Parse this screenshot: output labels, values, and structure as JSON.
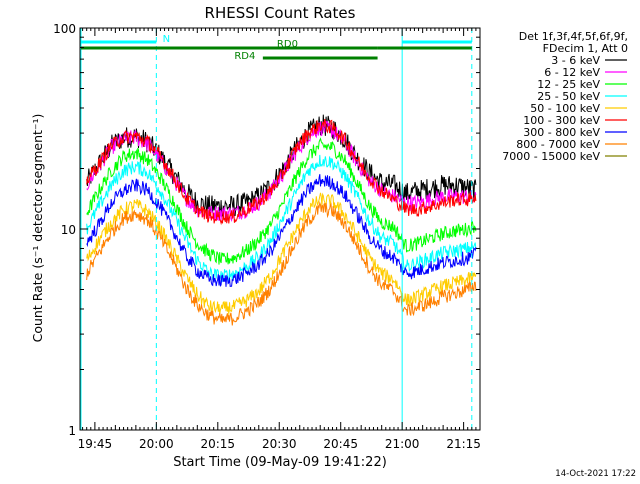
{
  "chart_data": {
    "type": "line",
    "title": "RHESSI Count Rates",
    "xlabel": "Start Time (09-May-09 19:41:22)",
    "ylabel": "Count Rate (s⁻¹ detector segment⁻¹)",
    "ylog": true,
    "ylim": [
      1,
      100
    ],
    "xlim": [
      "19:41:22",
      "21:19:00"
    ],
    "x_ticks": [
      "19:45",
      "20:00",
      "20:15",
      "20:30",
      "20:45",
      "21:00",
      "21:15"
    ],
    "y_ticks": [
      "1",
      "10",
      "100"
    ],
    "footer_date": "14-Oct-2021 17:22",
    "legend": {
      "header_line1": "Det 1f,3f,4f,5f,6f,9f,",
      "header_line2": "FDecim 1, Att 0",
      "placement": "top-right outside"
    },
    "time_axis": [
      "19:43",
      "19:46",
      "19:49",
      "19:52",
      "19:55",
      "19:58",
      "20:01",
      "20:04",
      "20:07",
      "20:10",
      "20:13",
      "20:16",
      "20:19",
      "20:22",
      "20:25",
      "20:28",
      "20:31",
      "20:34",
      "20:37",
      "20:40",
      "20:43",
      "20:46",
      "20:49",
      "20:52",
      "20:55",
      "20:58",
      "21:01",
      "21:04",
      "21:07",
      "21:10",
      "21:13",
      "21:16",
      "21:18"
    ],
    "series": [
      {
        "name": "3 - 6 keV",
        "color": "#000000",
        "values": [
          17,
          21,
          26,
          28.5,
          29,
          27,
          23,
          19,
          15.5,
          13.5,
          13,
          13,
          13,
          13.5,
          14.5,
          16.5,
          20,
          25,
          30,
          33,
          32,
          28,
          22.5,
          19,
          17,
          16.5,
          15,
          15.5,
          16,
          16.5,
          16.5,
          16,
          15.5
        ]
      },
      {
        "name": "6 - 12 keV",
        "color": "#ff00ff",
        "values": [
          16.5,
          20.5,
          25.5,
          28,
          28.5,
          26.5,
          22,
          18,
          14.5,
          12.5,
          12,
          12,
          12,
          12.5,
          13.5,
          15.5,
          19,
          24,
          29,
          32,
          31,
          27,
          21.5,
          17.5,
          15.5,
          14.5,
          13.5,
          13.5,
          14,
          14.5,
          14.5,
          14.5,
          14
        ]
      },
      {
        "name": "12 - 25 keV",
        "color": "#00ff00",
        "values": [
          12,
          15.5,
          19.5,
          23,
          24,
          22,
          18,
          14,
          10.5,
          8.5,
          7.5,
          7,
          7.2,
          7.8,
          8.8,
          10.5,
          13.5,
          18,
          23,
          26,
          25.5,
          22,
          17,
          13,
          10.8,
          10.2,
          8.2,
          8.5,
          9,
          9.5,
          9.8,
          10,
          10.5
        ]
      },
      {
        "name": "25 - 50 keV",
        "color": "#00ffff",
        "values": [
          10,
          13,
          16.5,
          19.5,
          20.5,
          19,
          15.5,
          12,
          9,
          7,
          6,
          5.8,
          6,
          6.5,
          7.3,
          8.8,
          11.5,
          15,
          19.5,
          22,
          21.5,
          18.5,
          14.5,
          11,
          9,
          8.5,
          6.5,
          6.8,
          7.2,
          7.6,
          7.8,
          8,
          8.2
        ]
      },
      {
        "name": "50 - 100 keV",
        "color": "#ffcc00",
        "values": [
          7,
          8.8,
          10.8,
          12.5,
          13.2,
          12.2,
          10,
          7.8,
          5.9,
          4.7,
          4.1,
          4,
          4.1,
          4.4,
          4.9,
          5.9,
          7.6,
          9.8,
          12.5,
          14,
          13.7,
          11.8,
          9.3,
          7.2,
          6,
          5.6,
          4.4,
          4.6,
          4.9,
          5.2,
          5.4,
          5.6,
          5.8
        ]
      },
      {
        "name": "100 - 300 keV",
        "color": "#ff0000",
        "values": [
          17.5,
          21,
          26,
          28.5,
          29,
          27,
          23,
          18.5,
          14.5,
          12.5,
          11.5,
          11.5,
          11.5,
          12.5,
          13.5,
          15.5,
          19,
          25,
          30,
          33,
          32,
          28,
          22,
          18,
          15.5,
          14,
          12.5,
          12.5,
          13,
          13.5,
          14,
          14,
          14.5
        ]
      },
      {
        "name": "300 - 800 keV",
        "color": "#0000ff",
        "values": [
          8.5,
          10.5,
          13.5,
          15.5,
          16.5,
          15.5,
          12.8,
          10,
          7.5,
          6.2,
          5.6,
          5.5,
          5.6,
          6,
          6.7,
          7.8,
          9.8,
          12.5,
          15.5,
          17.5,
          17,
          14.8,
          11.8,
          9.2,
          7.8,
          7.2,
          6,
          6.2,
          6.5,
          6.8,
          7,
          7.2,
          7.5
        ]
      },
      {
        "name": "800 - 7000 keV",
        "color": "#ff8000",
        "values": [
          6,
          7.6,
          9.6,
          11.3,
          12,
          11.1,
          9,
          7,
          5.2,
          4.2,
          3.7,
          3.5,
          3.6,
          3.9,
          4.3,
          5.1,
          6.6,
          8.6,
          11,
          12.7,
          12.3,
          10.6,
          8.3,
          6.4,
          5.3,
          4.9,
          3.9,
          4.1,
          4.3,
          4.6,
          4.8,
          5,
          5.3
        ]
      },
      {
        "name": "7000 - 15000 keV",
        "color": "#808000",
        "values": []
      }
    ],
    "attenuator_bars": [
      {
        "label": "N",
        "color": "#00ffff",
        "intervals": [
          [
            "19:41:22",
            "20:00:00"
          ],
          [
            "21:00:00",
            "21:17:00"
          ]
        ]
      },
      {
        "label": "RD0",
        "color": "#008000",
        "intervals": [
          [
            "19:41:22",
            "20:54:00"
          ],
          [
            "20:54:00",
            "21:17:00"
          ]
        ]
      },
      {
        "label": "RD4",
        "color": "#008000",
        "intervals": [
          [
            "20:26:00",
            "20:54:00"
          ]
        ]
      }
    ],
    "vertical_markers": [
      {
        "time": "19:41:22",
        "color": "#00ffff",
        "style": "solid"
      },
      {
        "time": "20:00:00",
        "color": "#00ffff",
        "style": "dashed"
      },
      {
        "time": "21:00:00",
        "color": "#00ffff",
        "style": "solid"
      },
      {
        "time": "21:17:00",
        "color": "#00ffff",
        "style": "dashed"
      }
    ]
  }
}
